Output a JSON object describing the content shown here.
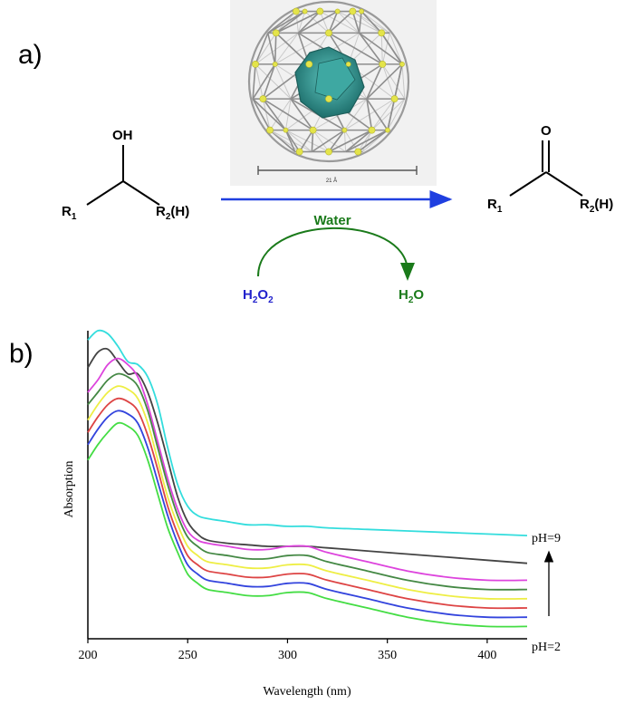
{
  "panel_a": {
    "label": "a)",
    "reactant": {
      "oh": "OH",
      "r1": "R",
      "r1_sub": "1",
      "r2": "R",
      "r2_sub": "2",
      "r2_suffix": "(H)"
    },
    "product": {
      "o": "O",
      "r1": "R",
      "r1_sub": "1",
      "r2": "R",
      "r2_sub": "2",
      "r2_suffix": "(H)"
    },
    "solvent": "Water",
    "oxidant": {
      "main": "H",
      "sub": "2",
      "main2": "O",
      "sub2": "2"
    },
    "byproduct": {
      "main": "H",
      "sub": "2",
      "main2": "O"
    },
    "scale_label": "21 Å",
    "colors": {
      "arrow": "#1f3fe0",
      "water": "#1a7a1a",
      "oxidant": "#2222cc",
      "cluster": "#2a8a8a",
      "node": "#e4e44a"
    }
  },
  "panel_b": {
    "label": "b)"
  },
  "chart_data": {
    "type": "line",
    "xlabel": "Wavelength (nm)",
    "ylabel": "Absorption",
    "xlim": [
      200,
      420
    ],
    "ylim": [
      0,
      1
    ],
    "x_ticks": [
      200,
      250,
      300,
      350,
      400
    ],
    "grid": false,
    "annotations": {
      "top": "pH=9",
      "bottom": "pH=2"
    },
    "x": [
      200,
      205,
      210,
      215,
      220,
      225,
      230,
      235,
      240,
      245,
      250,
      255,
      260,
      270,
      280,
      290,
      300,
      310,
      320,
      340,
      360,
      380,
      400,
      420
    ],
    "series": [
      {
        "color": "#33dddd",
        "values": [
          0.97,
          1.0,
          0.99,
          0.95,
          0.9,
          0.89,
          0.85,
          0.76,
          0.62,
          0.5,
          0.43,
          0.4,
          0.39,
          0.38,
          0.37,
          0.37,
          0.365,
          0.365,
          0.36,
          0.355,
          0.35,
          0.345,
          0.34,
          0.335
        ]
      },
      {
        "color": "#444444",
        "values": [
          0.88,
          0.93,
          0.94,
          0.9,
          0.86,
          0.86,
          0.8,
          0.7,
          0.58,
          0.46,
          0.38,
          0.34,
          0.32,
          0.31,
          0.305,
          0.3,
          0.3,
          0.3,
          0.295,
          0.285,
          0.275,
          0.265,
          0.255,
          0.245
        ]
      },
      {
        "color": "#dd44dd",
        "values": [
          0.8,
          0.84,
          0.89,
          0.91,
          0.89,
          0.85,
          0.76,
          0.64,
          0.52,
          0.42,
          0.35,
          0.32,
          0.31,
          0.3,
          0.29,
          0.29,
          0.3,
          0.3,
          0.28,
          0.25,
          0.22,
          0.2,
          0.19,
          0.19
        ]
      },
      {
        "color": "#448844",
        "values": [
          0.76,
          0.8,
          0.84,
          0.86,
          0.85,
          0.82,
          0.74,
          0.62,
          0.5,
          0.4,
          0.33,
          0.3,
          0.28,
          0.27,
          0.26,
          0.26,
          0.27,
          0.27,
          0.25,
          0.22,
          0.19,
          0.17,
          0.16,
          0.16
        ]
      },
      {
        "color": "#eeee44",
        "values": [
          0.71,
          0.76,
          0.8,
          0.82,
          0.81,
          0.78,
          0.7,
          0.58,
          0.46,
          0.37,
          0.3,
          0.27,
          0.25,
          0.24,
          0.23,
          0.23,
          0.24,
          0.24,
          0.22,
          0.19,
          0.16,
          0.14,
          0.13,
          0.13
        ]
      },
      {
        "color": "#dd4444",
        "values": [
          0.67,
          0.72,
          0.76,
          0.78,
          0.77,
          0.74,
          0.66,
          0.55,
          0.43,
          0.34,
          0.27,
          0.24,
          0.22,
          0.21,
          0.2,
          0.2,
          0.21,
          0.21,
          0.19,
          0.16,
          0.13,
          0.11,
          0.1,
          0.1
        ]
      },
      {
        "color": "#3344dd",
        "values": [
          0.63,
          0.68,
          0.72,
          0.74,
          0.73,
          0.7,
          0.62,
          0.51,
          0.4,
          0.31,
          0.24,
          0.21,
          0.19,
          0.18,
          0.17,
          0.17,
          0.18,
          0.18,
          0.16,
          0.13,
          0.1,
          0.08,
          0.07,
          0.07
        ]
      },
      {
        "color": "#44dd44",
        "values": [
          0.58,
          0.63,
          0.67,
          0.7,
          0.69,
          0.66,
          0.58,
          0.47,
          0.36,
          0.28,
          0.21,
          0.18,
          0.16,
          0.15,
          0.14,
          0.14,
          0.15,
          0.15,
          0.13,
          0.1,
          0.07,
          0.05,
          0.04,
          0.04
        ]
      }
    ]
  }
}
